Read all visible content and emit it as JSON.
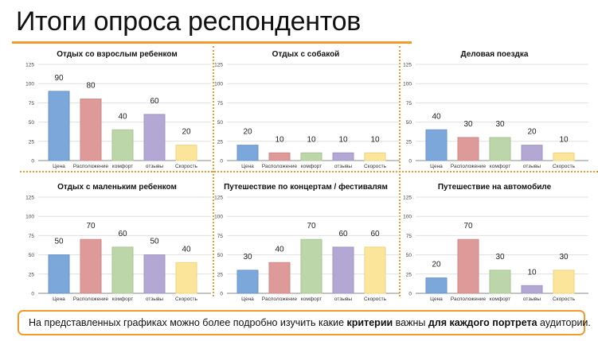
{
  "page_title": "Итоги опроса респондентов",
  "note": {
    "part1": "На представленных графиках можно более подробно изучить какие ",
    "bold1": "критерии",
    "part2": " важны ",
    "bold2": "для каждого портрета",
    "part3": " аудитории."
  },
  "colors": [
    "#7ba7da",
    "#dd9a98",
    "#bcd6a9",
    "#b3a7d3",
    "#fae59a"
  ],
  "accent": "#f39a2a",
  "chart_data": [
    {
      "type": "bar",
      "title": "Отдых со взрослым ребенком",
      "categories": [
        "Цена",
        "Расположение",
        "комфорт",
        "отзывы",
        "Скорость"
      ],
      "values": [
        90,
        80,
        40,
        60,
        20
      ],
      "ylim": [
        0,
        125
      ],
      "yticks": [
        0,
        25,
        50,
        75,
        100,
        125
      ],
      "grid": true
    },
    {
      "type": "bar",
      "title": "Отдых с собакой",
      "categories": [
        "Цена",
        "Расположение",
        "комфорт",
        "отзывы",
        "Скорость"
      ],
      "values": [
        20,
        10,
        10,
        10,
        10
      ],
      "ylim": [
        0,
        125
      ],
      "yticks": [
        0,
        25,
        50,
        75,
        100,
        125
      ],
      "grid": true
    },
    {
      "type": "bar",
      "title": "Деловая поездка",
      "categories": [
        "Цена",
        "Расположение",
        "комфорт",
        "отзывы",
        "Скорость"
      ],
      "values": [
        40,
        30,
        30,
        20,
        10
      ],
      "ylim": [
        0,
        125
      ],
      "yticks": [
        0,
        25,
        50,
        75,
        100,
        125
      ],
      "grid": true
    },
    {
      "type": "bar",
      "title": "Отдых с маленьким ребенком",
      "categories": [
        "Цена",
        "Расположение",
        "комфорт",
        "отзывы",
        "Скорость"
      ],
      "values": [
        50,
        70,
        60,
        50,
        40
      ],
      "ylim": [
        0,
        125
      ],
      "yticks": [
        0,
        25,
        50,
        75,
        100,
        125
      ],
      "grid": true
    },
    {
      "type": "bar",
      "title": "Путешествие по концертам / фестивалям",
      "categories": [
        "Цена",
        "Расположение",
        "комфорт",
        "отзывы",
        "Скорость"
      ],
      "values": [
        30,
        40,
        70,
        60,
        60
      ],
      "ylim": [
        0,
        125
      ],
      "yticks": [
        0,
        25,
        50,
        75,
        100,
        125
      ],
      "grid": true
    },
    {
      "type": "bar",
      "title": "Путешествие на автомобиле",
      "categories": [
        "Цена",
        "Расположение",
        "комфорт",
        "отзывы",
        "Скорость"
      ],
      "values": [
        20,
        70,
        30,
        10,
        30
      ],
      "ylim": [
        0,
        125
      ],
      "yticks": [
        0,
        25,
        50,
        75,
        100,
        125
      ],
      "grid": true
    }
  ]
}
